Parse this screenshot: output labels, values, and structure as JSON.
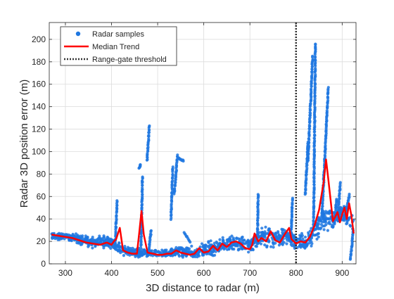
{
  "chart_data": {
    "type": "scatter",
    "title": "",
    "xlabel": "3D distance to radar (m)",
    "ylabel": "Radar 3D position error (m)",
    "xlim": [
      265,
      930
    ],
    "ylim": [
      0,
      215
    ],
    "xticks": [
      300,
      400,
      500,
      600,
      700,
      800,
      900
    ],
    "yticks": [
      0,
      20,
      40,
      60,
      80,
      100,
      120,
      140,
      160,
      180,
      200
    ],
    "xtick_labels": [
      "300",
      "400",
      "500",
      "600",
      "700",
      "800",
      "900"
    ],
    "ytick_labels": [
      "0",
      "20",
      "40",
      "60",
      "80",
      "100",
      "120",
      "140",
      "160",
      "180",
      "200"
    ],
    "grid": true,
    "legend_position": "top-left",
    "legend": [
      {
        "label": "Radar samples",
        "kind": "marker",
        "color": "#1f77e0"
      },
      {
        "label": "Median Trend",
        "kind": "line",
        "color": "#ff0000"
      },
      {
        "label": "Range-gate threshold",
        "kind": "dotted",
        "color": "#333333"
      }
    ],
    "threshold_x": 800,
    "median_trend": {
      "name": "Median Trend",
      "color": "#ff0000",
      "x": [
        270,
        285,
        300,
        315,
        330,
        345,
        360,
        375,
        390,
        400,
        405,
        410,
        418,
        425,
        435,
        445,
        455,
        460,
        465,
        470,
        478,
        490,
        500,
        510,
        520,
        530,
        540,
        550,
        560,
        570,
        580,
        590,
        600,
        610,
        620,
        630,
        640,
        650,
        660,
        670,
        680,
        690,
        700,
        705,
        710,
        718,
        725,
        735,
        745,
        755,
        765,
        775,
        785,
        790,
        800,
        810,
        820,
        830,
        840,
        850,
        860,
        865,
        870,
        880,
        890,
        895,
        900,
        905,
        910,
        915,
        920,
        925
      ],
      "y": [
        26,
        25,
        24,
        23,
        21,
        19,
        18,
        17,
        19,
        17,
        20,
        22,
        32,
        12,
        10,
        9,
        9,
        27,
        47,
        26,
        10,
        9,
        8,
        8,
        9,
        9,
        12,
        10,
        9,
        8,
        9,
        14,
        10,
        11,
        16,
        12,
        18,
        15,
        19,
        20,
        18,
        14,
        13,
        17,
        27,
        20,
        23,
        20,
        29,
        21,
        19,
        26,
        32,
        22,
        18,
        20,
        19,
        24,
        34,
        48,
        73,
        93,
        75,
        38,
        46,
        37,
        44,
        50,
        40,
        54,
        43,
        27
      ]
    },
    "radar_samples": {
      "name": "Radar samples",
      "color": "#1f77e0",
      "band_x": [
        270,
        300,
        330,
        360,
        390,
        400,
        420,
        440,
        460,
        480,
        500,
        520,
        540,
        560,
        580,
        600,
        620,
        640,
        660,
        680,
        700,
        720,
        740,
        760,
        780,
        800,
        820,
        840,
        860,
        880,
        900,
        925
      ],
      "band_y": [
        25,
        24,
        22,
        19,
        20,
        18,
        13,
        10,
        10,
        10,
        9,
        9,
        11,
        10,
        10,
        12,
        14,
        17,
        18,
        17,
        17,
        24,
        24,
        22,
        26,
        19,
        20,
        28,
        42,
        40,
        45,
        35
      ],
      "band_spread": [
        4,
        5,
        6,
        7,
        8,
        8,
        6,
        5,
        6,
        5,
        4,
        5,
        6,
        6,
        7,
        8,
        8,
        8,
        9,
        9,
        10,
        11,
        12,
        11,
        10,
        9,
        10,
        13,
        16,
        14,
        12,
        14
      ],
      "streaks": [
        {
          "x": [
            408,
            412
          ],
          "y": [
            18,
            56
          ]
        },
        {
          "x": [
            460,
            463
          ],
          "y": [
            85,
            88
          ]
        },
        {
          "x": [
            464,
            467
          ],
          "y": [
            15,
            78
          ]
        },
        {
          "x": [
            477,
            482
          ],
          "y": [
            92,
            123
          ]
        },
        {
          "x": [
            480,
            486
          ],
          "y": [
            8,
            30
          ]
        },
        {
          "x": [
            529,
            533
          ],
          "y": [
            40,
            86
          ]
        },
        {
          "x": [
            536,
            543
          ],
          "y": [
            62,
            97
          ]
        },
        {
          "x": [
            545,
            556
          ],
          "y": [
            94,
            92
          ]
        },
        {
          "x": [
            558,
            570
          ],
          "y": [
            28,
            20
          ]
        },
        {
          "x": [
            716,
            718
          ],
          "y": [
            18,
            62
          ]
        },
        {
          "x": [
            789,
            792
          ],
          "y": [
            20,
            58
          ]
        },
        {
          "x": [
            820,
            826
          ],
          "y": [
            62,
            108
          ]
        },
        {
          "x": [
            826,
            836
          ],
          "y": [
            92,
            185
          ]
        },
        {
          "x": [
            838,
            842
          ],
          "y": [
            30,
            196
          ]
        },
        {
          "x": [
            856,
            870
          ],
          "y": [
            42,
            157
          ]
        },
        {
          "x": [
            883,
            888
          ],
          "y": [
            35,
            58
          ]
        },
        {
          "x": [
            890,
            896
          ],
          "y": [
            40,
            72
          ]
        },
        {
          "x": [
            904,
            916
          ],
          "y": [
            38,
            62
          ]
        },
        {
          "x": [
            918,
            924
          ],
          "y": [
            4,
            30
          ]
        }
      ]
    }
  }
}
